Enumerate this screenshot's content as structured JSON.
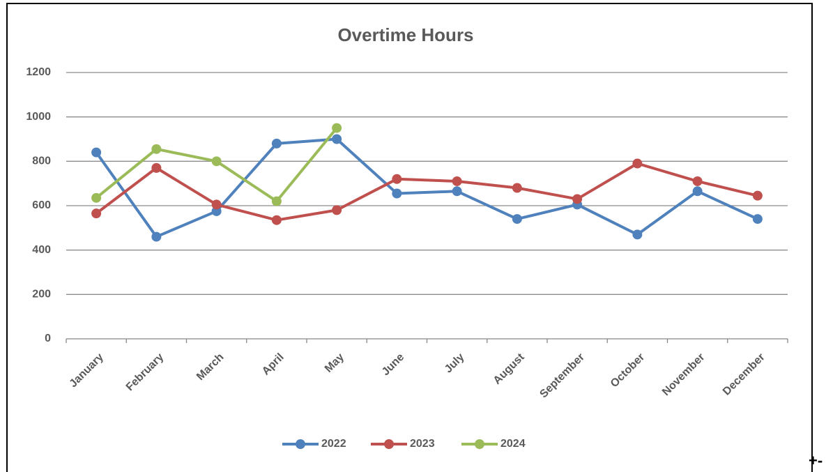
{
  "chart_data": {
    "type": "line",
    "title": "Overtime Hours",
    "categories": [
      "January",
      "February",
      "March",
      "April",
      "May",
      "June",
      "July",
      "August",
      "September",
      "October",
      "November",
      "December"
    ],
    "series": [
      {
        "name": "2022",
        "color": "#4f81bd",
        "values": [
          840,
          460,
          575,
          880,
          900,
          655,
          665,
          540,
          605,
          470,
          665,
          540
        ]
      },
      {
        "name": "2023",
        "color": "#c0504d",
        "values": [
          565,
          770,
          605,
          535,
          580,
          720,
          710,
          680,
          630,
          790,
          710,
          645
        ]
      },
      {
        "name": "2024",
        "color": "#9bbb59",
        "values": [
          635,
          855,
          800,
          620,
          950,
          null,
          null,
          null,
          null,
          null,
          null,
          null
        ]
      }
    ],
    "ylim": [
      0,
      1200
    ],
    "yticks": [
      0,
      200,
      400,
      600,
      800,
      1000,
      1200
    ],
    "grid": true,
    "legend": "bottom"
  },
  "page_text": "+-"
}
